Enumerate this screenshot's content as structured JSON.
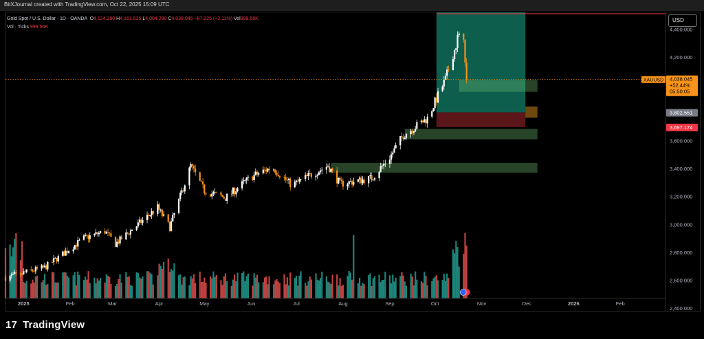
{
  "header": {
    "title": "BitXJournal created with TradingView.com, Oct 22, 2025 15:09 UTC"
  },
  "legend": {
    "symbol": "Gold Spot / U.S. Dollar · 1D · OANDA",
    "open_label": "O",
    "open": "4,124.280",
    "high_label": "H",
    "high": "4,161.535",
    "low_label": "L",
    "low": "4,004.280",
    "close_label": "C",
    "close": "4,038.045",
    "change": "−87.225 (−2.11%)",
    "vol_label": "Vol",
    "vol": "999.56K",
    "ticks_label": "Vol · Ticks",
    "ticks_value": "999.56K"
  },
  "currency_button": "USD",
  "price_label": {
    "symbol": "XAUUSD",
    "price": "4,038.045",
    "change": "+52.44%",
    "countdown": "05:50:05"
  },
  "level_labels": [
    {
      "value": "3,802.551",
      "color": "#787b86"
    },
    {
      "value": "3,697.174",
      "color": "#f23645"
    }
  ],
  "brand": {
    "logo_text": "TradingView",
    "logo_icon": "tradingview-logo-icon"
  },
  "colors": {
    "up": "#ffffff",
    "down": "#f7931a",
    "vol_up": "#26a69a",
    "vol_down": "#ef5350",
    "target_zone": "#0f6e5b",
    "stop_zone": "#6b1a1f"
  },
  "chart_data": {
    "type": "candlestick",
    "title": "Gold Spot / U.S. Dollar · 1D · OANDA",
    "y_ticks": [
      "4,400.000",
      "4,200.000",
      "4,000.000",
      "3,800.000",
      "3,600.000",
      "3,400.000",
      "3,200.000",
      "3,000.000",
      "2,800.000",
      "2,600.000",
      "2,400.000"
    ],
    "y_tick_values": [
      4400,
      4200,
      4000,
      3800,
      3600,
      3400,
      3200,
      3000,
      2800,
      2600,
      2400
    ],
    "ylim": [
      2380,
      4520
    ],
    "x_ticks": [
      "2025",
      "Feb",
      "Mar",
      "Apr",
      "May",
      "Jun",
      "Jul",
      "Aug",
      "Sep",
      "Oct",
      "Nov",
      "Dec",
      "2026",
      "Feb"
    ],
    "x_tick_dates": [
      "2025-01-01",
      "2025-02-01",
      "2025-03-01",
      "2025-04-01",
      "2025-05-01",
      "2025-06-01",
      "2025-07-01",
      "2025-08-01",
      "2025-09-01",
      "2025-10-01",
      "2025-11-01",
      "2025-12-01",
      "2026-01-01",
      "2026-02-01"
    ],
    "xlim": [
      "2024-12-20",
      "2026-03-03"
    ],
    "price_series_anchors": [
      [
        "2024-12-20",
        2620
      ],
      [
        "2025-01-15",
        2690
      ],
      [
        "2025-02-10",
        2900
      ],
      [
        "2025-02-24",
        2950
      ],
      [
        "2025-03-03",
        2860
      ],
      [
        "2025-03-31",
        3120
      ],
      [
        "2025-04-08",
        2980
      ],
      [
        "2025-04-22",
        3420
      ],
      [
        "2025-05-01",
        3240
      ],
      [
        "2025-05-15",
        3190
      ],
      [
        "2025-06-01",
        3340
      ],
      [
        "2025-06-15",
        3410
      ],
      [
        "2025-06-28",
        3280
      ],
      [
        "2025-07-22",
        3420
      ],
      [
        "2025-07-30",
        3290
      ],
      [
        "2025-08-20",
        3330
      ],
      [
        "2025-09-01",
        3480
      ],
      [
        "2025-09-10",
        3640
      ],
      [
        "2025-09-26",
        3760
      ],
      [
        "2025-10-08",
        4040
      ],
      [
        "2025-10-16",
        4330
      ],
      [
        "2025-10-20",
        4356
      ],
      [
        "2025-10-22",
        4038
      ]
    ],
    "last_price": 4038.045,
    "boxes": [
      {
        "kind": "target",
        "from": "2025-10-02",
        "to": "2025-11-30",
        "y1": 3803,
        "y2": 4520
      },
      {
        "kind": "stop",
        "from": "2025-10-02",
        "to": "2025-11-30",
        "y1": 3697,
        "y2": 3803
      },
      {
        "kind": "zone",
        "from": "2025-07-24",
        "to": "2025-12-08",
        "y1": 3370,
        "y2": 3440
      },
      {
        "kind": "zone",
        "from": "2025-09-11",
        "to": "2025-12-08",
        "y1": 3610,
        "y2": 3685
      },
      {
        "kind": "zone",
        "from": "2025-10-17",
        "to": "2025-12-08",
        "y1": 3950,
        "y2": 4035
      },
      {
        "kind": "amber",
        "from": "2025-11-30",
        "to": "2025-12-08",
        "y1": 3765,
        "y2": 3845
      }
    ],
    "volume_note": "Vol · Ticks histogram at bottom"
  }
}
